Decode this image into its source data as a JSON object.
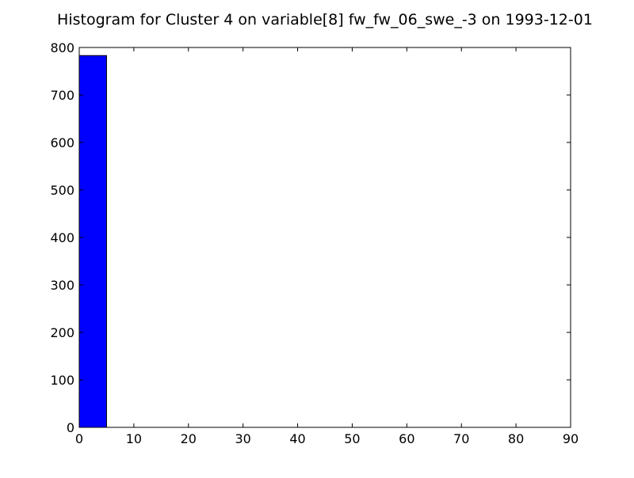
{
  "chart_data": {
    "type": "bar",
    "title": "Histogram for Cluster 4 on variable[8] fw_fw_06_swe_-3 on 1993-12-01",
    "xlabel": "",
    "ylabel": "",
    "xlim": [
      0,
      90
    ],
    "ylim": [
      0,
      800
    ],
    "xticks": [
      0,
      10,
      20,
      30,
      40,
      50,
      60,
      70,
      80,
      90
    ],
    "yticks": [
      0,
      100,
      200,
      300,
      400,
      500,
      600,
      700,
      800
    ],
    "bins": [
      {
        "x0": 0,
        "x1": 5,
        "count": 783
      }
    ],
    "bar_color": "#0000ff",
    "grid": false,
    "legend": "none"
  }
}
